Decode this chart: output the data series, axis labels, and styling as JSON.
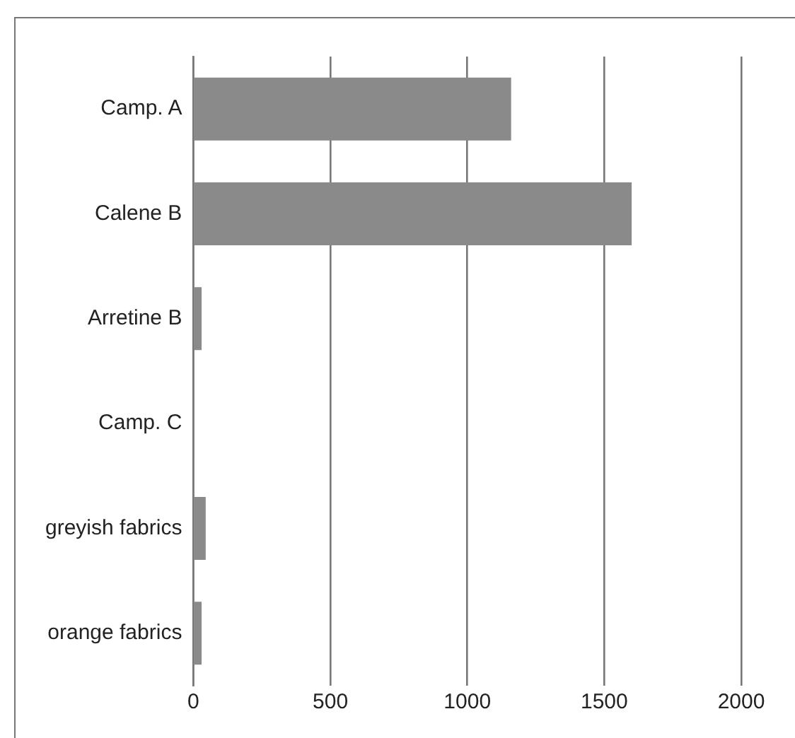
{
  "chart_data": {
    "type": "bar",
    "orientation": "horizontal",
    "categories": [
      "Camp. A",
      "Calene B",
      "Arretine B",
      "Camp. C",
      "greyish fabrics",
      "orange fabrics"
    ],
    "values": [
      1160,
      1600,
      30,
      2,
      45,
      30
    ],
    "color": "#8a8a8a",
    "xlim": [
      0,
      2000
    ],
    "xticks": [
      0,
      500,
      1000,
      1500,
      2000
    ],
    "grid": "x",
    "legend": false
  }
}
